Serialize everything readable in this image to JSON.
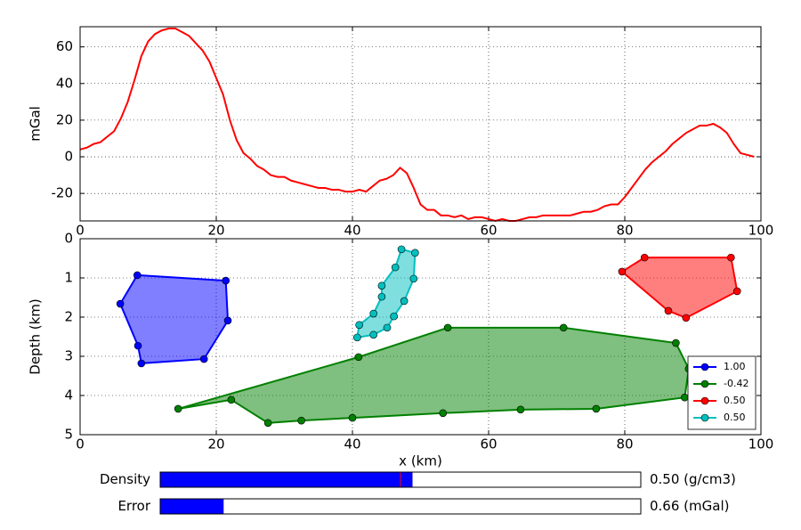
{
  "chart_data": [
    {
      "type": "line",
      "ylabel": "mGal",
      "x": [
        0,
        1,
        2,
        3,
        4,
        5,
        6,
        7,
        8,
        9,
        10,
        11,
        12,
        13,
        14,
        15,
        16,
        17,
        18,
        19,
        20,
        21,
        22,
        23,
        24,
        25,
        26,
        27,
        28,
        29,
        30,
        31,
        32,
        33,
        34,
        35,
        36,
        37,
        38,
        39,
        40,
        41,
        42,
        43,
        44,
        45,
        46,
        47,
        48,
        49,
        50,
        51,
        52,
        53,
        54,
        55,
        56,
        57,
        58,
        59,
        60,
        61,
        62,
        63,
        64,
        65,
        66,
        67,
        68,
        69,
        70,
        71,
        72,
        73,
        74,
        75,
        76,
        77,
        78,
        79,
        80,
        81,
        82,
        83,
        84,
        85,
        86,
        87,
        88,
        89,
        90,
        91,
        92,
        93,
        94,
        95,
        96,
        97,
        98,
        99
      ],
      "series": [
        {
          "color": "#ff0000",
          "values": [
            4,
            5,
            7,
            8,
            11,
            14,
            21,
            30,
            42,
            55,
            63,
            67,
            69,
            70,
            70,
            68,
            66,
            62,
            58,
            52,
            43,
            34,
            20,
            9,
            2,
            -1,
            -5,
            -7,
            -10,
            -11,
            -11,
            -13,
            -14,
            -15,
            -16,
            -17,
            -17,
            -18,
            -18,
            -19,
            -19,
            -18,
            -19,
            -16,
            -13,
            -12,
            -10,
            -6,
            -9,
            -17,
            -26,
            -29,
            -29,
            -32,
            -32,
            -33,
            -32,
            -34,
            -33,
            -33,
            -34,
            -35,
            -34,
            -35,
            -35,
            -34,
            -33,
            -33,
            -32,
            -32,
            -32,
            -32,
            -32,
            -31,
            -30,
            -30,
            -29,
            -27,
            -26,
            -26,
            -22,
            -17,
            -12,
            -7,
            -3,
            0,
            3,
            7,
            10,
            13,
            15,
            17,
            17,
            18,
            16,
            13,
            7,
            2,
            1,
            0
          ]
        }
      ],
      "xlim": [
        0,
        100
      ],
      "xticks": [
        0,
        20,
        40,
        60,
        80,
        100
      ],
      "ylim": [
        -35,
        71
      ],
      "yticks": [
        -20,
        0,
        20,
        40,
        60
      ],
      "grid": true
    },
    {
      "type": "polygon",
      "xlabel": "x (km)",
      "ylabel": "Depth (km)",
      "series": [
        {
          "name": "1.00",
          "color": "#0000ff",
          "x": [
            8.4,
            21.4,
            21.7,
            18.2,
            9.0,
            8.5,
            5.9
          ],
          "values": [
            0.93,
            1.07,
            2.09,
            3.07,
            3.18,
            2.73,
            1.66
          ]
        },
        {
          "name": "-0.42",
          "color": "#008000",
          "x": [
            14.4,
            22.2,
            27.6,
            32.5,
            40.0,
            53.3,
            64.7,
            75.8,
            88.8,
            89.4,
            87.5,
            71.0,
            54.0,
            40.9
          ],
          "values": [
            4.34,
            4.11,
            4.7,
            4.64,
            4.57,
            4.45,
            4.36,
            4.34,
            4.05,
            3.32,
            2.66,
            2.27,
            2.27,
            3.02
          ]
        },
        {
          "name": "0.50",
          "color": "#ff0000",
          "x": [
            79.6,
            82.9,
            95.6,
            96.5,
            89.0,
            86.4
          ],
          "values": [
            0.84,
            0.48,
            0.48,
            1.34,
            2.02,
            1.84
          ]
        },
        {
          "name": "0.50",
          "color": "#00bfbf",
          "x": [
            47.2,
            49.2,
            49.0,
            47.6,
            46.1,
            45.1,
            43.1,
            40.7,
            41.0,
            43.1,
            44.3,
            44.3,
            46.3
          ],
          "values": [
            0.27,
            0.36,
            1.02,
            1.59,
            1.98,
            2.27,
            2.45,
            2.52,
            2.2,
            1.91,
            1.48,
            1.2,
            0.73
          ]
        }
      ],
      "xlim": [
        0,
        100
      ],
      "xticks": [
        0,
        20,
        40,
        60,
        80,
        100
      ],
      "ylim": [
        5,
        0
      ],
      "yticks": [
        0,
        1,
        2,
        3,
        4,
        5
      ],
      "grid": true,
      "legend": "lower right"
    }
  ],
  "controls": [
    {
      "label": "Density",
      "value": 0.5,
      "value_label": "0.50 (g/cm3)",
      "range": [
        -10,
        10
      ],
      "initial": 0,
      "color": "#0000ff"
    },
    {
      "label": "Error",
      "value": 0.66,
      "value_label": "0.66 (mGal)",
      "range": [
        0,
        5
      ],
      "color": "#0000ff"
    }
  ]
}
